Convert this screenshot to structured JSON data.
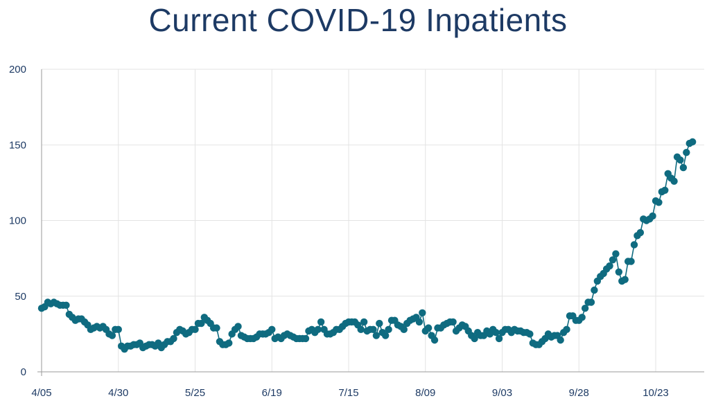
{
  "chart_data": {
    "type": "line",
    "title": "Current COVID-19 Inpatients",
    "xlabel": "",
    "ylabel": "",
    "ylim": [
      0,
      200
    ],
    "yticks": [
      0,
      50,
      100,
      150,
      200
    ],
    "x_tick_labels": [
      "4/05",
      "4/30",
      "5/25",
      "6/19",
      "7/15",
      "8/09",
      "9/03",
      "9/28",
      "10/23"
    ],
    "grid": true,
    "legend": "none",
    "colors": {
      "series": "#0f6b80",
      "grid": "#e3e3e3",
      "text": "#1d3a64"
    },
    "x_start": "4/05",
    "x_step_days": 1,
    "series": [
      {
        "name": "",
        "values": [
          42,
          43,
          46,
          45,
          46,
          45,
          44,
          44,
          44,
          38,
          36,
          34,
          35,
          35,
          33,
          31,
          28,
          29,
          30,
          29,
          30,
          28,
          25,
          24,
          28,
          28,
          17,
          15,
          17,
          17,
          18,
          18,
          19,
          16,
          17,
          18,
          18,
          17,
          19,
          16,
          18,
          20,
          20,
          22,
          26,
          28,
          27,
          25,
          26,
          28,
          28,
          32,
          32,
          36,
          34,
          32,
          29,
          29,
          20,
          18,
          18,
          19,
          25,
          28,
          30,
          24,
          23,
          22,
          22,
          22,
          23,
          25,
          25,
          25,
          26,
          28,
          22,
          23,
          22,
          24,
          25,
          24,
          23,
          22,
          22,
          22,
          22,
          27,
          28,
          26,
          28,
          33,
          28,
          25,
          25,
          26,
          28,
          28,
          30,
          32,
          33,
          33,
          33,
          31,
          28,
          33,
          27,
          28,
          28,
          24,
          32,
          26,
          24,
          28,
          34,
          34,
          31,
          30,
          28,
          32,
          34,
          35,
          36,
          33,
          39,
          27,
          29,
          24,
          21,
          29,
          29,
          31,
          32,
          33,
          33,
          27,
          29,
          31,
          30,
          27,
          24,
          22,
          26,
          24,
          24,
          27,
          25,
          28,
          26,
          22,
          26,
          28,
          28,
          26,
          28,
          27,
          27,
          26,
          26,
          25,
          19,
          18,
          18,
          20,
          22,
          25,
          23,
          24,
          24,
          21,
          26,
          28,
          37,
          37,
          34,
          34,
          36,
          42,
          46,
          46,
          54,
          60,
          63,
          65,
          68,
          70,
          74,
          78,
          66,
          60,
          61,
          73,
          73,
          84,
          90,
          92,
          101,
          100,
          101,
          103,
          113,
          112,
          119,
          120,
          131,
          128,
          126,
          142,
          140,
          135,
          145,
          151,
          152
        ]
      }
    ]
  }
}
